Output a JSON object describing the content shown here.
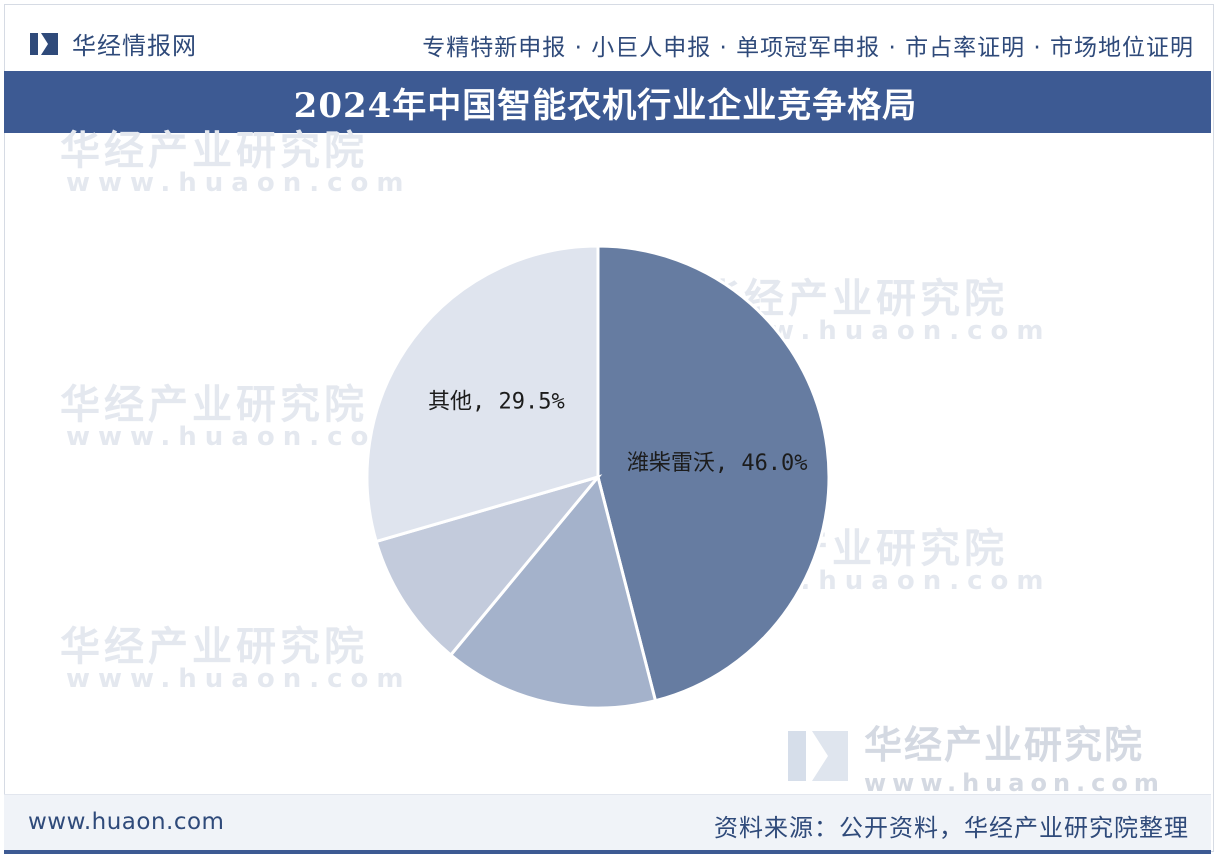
{
  "header": {
    "brand_name": "华经情报网",
    "top_links": "专精特新申报 · 小巨人申报 · 单项冠军申报 · 市占率证明 · 市场地位证明"
  },
  "title": "2024年中国智能农机行业企业竞争格局",
  "watermark": {
    "cn": "华经产业研究院",
    "en": "www.huaon.com"
  },
  "chart_data": {
    "type": "pie",
    "start_angle_deg": 0,
    "direction": "clockwise",
    "slices": [
      {
        "label": "潍柴雷沃",
        "value": 46.0,
        "display": "潍柴雷沃, 46.0%",
        "color": "#667ca1"
      },
      {
        "label": "",
        "value": 15.0,
        "display": "",
        "color": "#a4b2cb"
      },
      {
        "label": "",
        "value": 9.5,
        "display": "",
        "color": "#c3cbdc"
      },
      {
        "label": "其他",
        "value": 29.5,
        "display": "其他, 29.5%",
        "color": "#dfe4ee"
      }
    ]
  },
  "footer": {
    "url": "www.huaon.com",
    "source": "资料来源：公开资料，华经产业研究院整理"
  },
  "colors": {
    "brand_blue": "#3d5a93",
    "text_blue": "#2f4a7a"
  }
}
